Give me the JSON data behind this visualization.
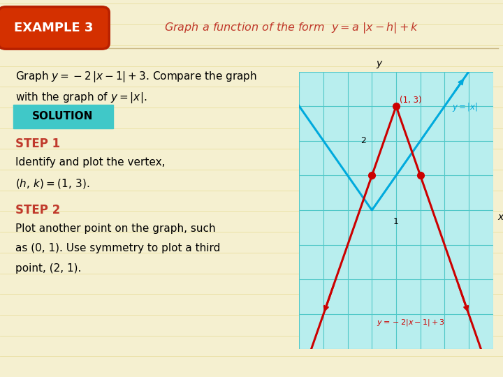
{
  "bg_color": "#f5f0d0",
  "title_box_text": "EXAMPLE 3",
  "title_box_fg": "#ffffff",
  "title_box_bg": "#d43000",
  "title_box_border": "#b82000",
  "header_color": "#c0392b",
  "solution_bg": "#40c8c8",
  "solution_text": "SOLUTION",
  "step1_label": "STEP 1",
  "step_color": "#c0392b",
  "step1_text1": "Identify and plot the vertex,",
  "step1_text2": "(h, k) = (1, 3).",
  "step2_label": "STEP 2",
  "step2_text1": "Plot another point on the graph, such",
  "step2_text2": "as (0, 1). Use symmetry to plot a third",
  "step2_text3": "point, (2, 1).",
  "graph_bg": "#b8eeee",
  "graph_grid_color": "#50c8c8",
  "abs_line_color": "#00aadd",
  "transformed_line_color": "#cc0000",
  "dot_color": "#cc0000",
  "vertex": [
    1,
    3
  ],
  "points": [
    [
      0,
      1
    ],
    [
      2,
      1
    ]
  ],
  "xlim": [
    -3,
    5
  ],
  "ylim": [
    -4,
    4
  ]
}
